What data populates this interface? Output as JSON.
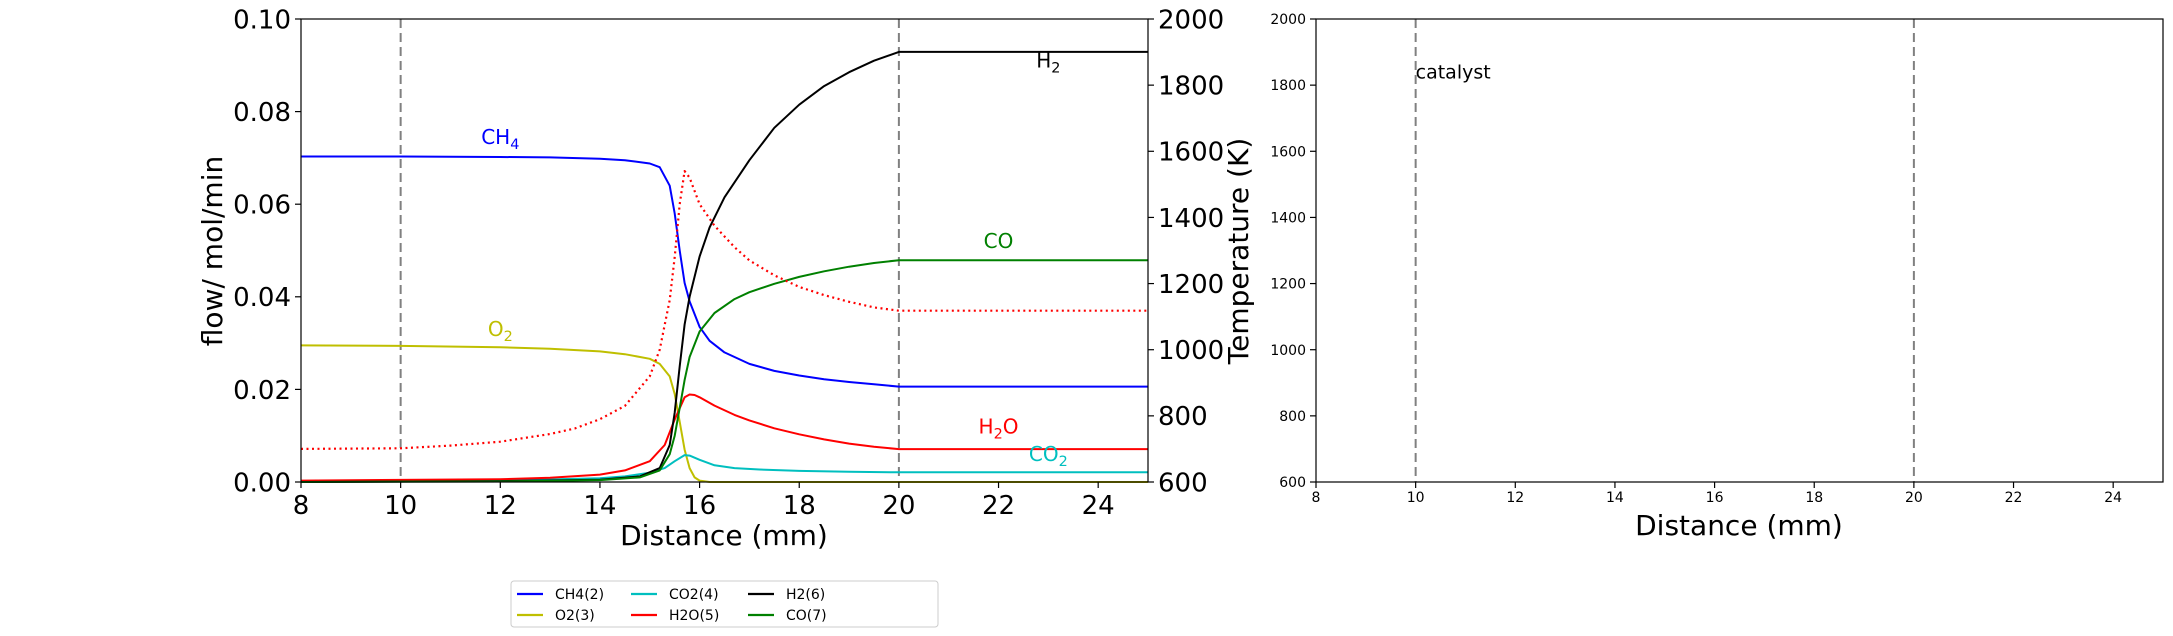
{
  "chart_data": [
    {
      "type": "line",
      "xlabel": "Distance (mm)",
      "ylabel": "flow/ mol/min",
      "y2label": "Temperature (K)",
      "xlim": [
        8,
        25
      ],
      "ylim": [
        0,
        0.1
      ],
      "y2lim": [
        600,
        2000
      ],
      "xticks": [
        "8",
        "10",
        "12",
        "14",
        "16",
        "18",
        "20",
        "22",
        "24"
      ],
      "yticks": [
        "0.00",
        "0.02",
        "0.04",
        "0.06",
        "0.08",
        "0.10"
      ],
      "y2ticks": [
        "600",
        "800",
        "1000",
        "1200",
        "1400",
        "1600",
        "1800",
        "2000"
      ],
      "grid": false,
      "vlines": [
        10,
        20
      ],
      "series": [
        {
          "name": "CH4(2)",
          "color": "#0000ff",
          "style": "solid",
          "axis": "left",
          "x": [
            8,
            10,
            12,
            13,
            14,
            14.5,
            15,
            15.2,
            15.4,
            15.5,
            15.6,
            15.7,
            15.8,
            16,
            16.2,
            16.5,
            17,
            17.5,
            18,
            18.5,
            19,
            19.5,
            20,
            22,
            25
          ],
          "y": [
            0.0703,
            0.0703,
            0.0702,
            0.0701,
            0.0698,
            0.0695,
            0.0688,
            0.068,
            0.064,
            0.058,
            0.05,
            0.043,
            0.039,
            0.0335,
            0.0305,
            0.028,
            0.0255,
            0.024,
            0.023,
            0.0222,
            0.0216,
            0.0211,
            0.0206,
            0.0206,
            0.0206
          ]
        },
        {
          "name": "O2(3)",
          "color": "#bfbf00",
          "style": "solid",
          "axis": "left",
          "x": [
            8,
            10,
            12,
            13,
            14,
            14.5,
            15,
            15.2,
            15.4,
            15.5,
            15.6,
            15.7,
            15.8,
            15.9,
            16,
            16.2,
            25
          ],
          "y": [
            0.0295,
            0.0294,
            0.0291,
            0.0288,
            0.0282,
            0.0276,
            0.0266,
            0.0255,
            0.0228,
            0.019,
            0.013,
            0.007,
            0.003,
            0.001,
            0.0003,
            0.0,
            0.0
          ]
        },
        {
          "name": "CO2(4)",
          "color": "#00bfbf",
          "style": "solid",
          "axis": "left",
          "x": [
            8,
            12,
            14,
            14.5,
            15,
            15.3,
            15.5,
            15.7,
            15.8,
            16,
            16.3,
            16.7,
            17.2,
            18,
            19,
            20,
            25
          ],
          "y": [
            0.0002,
            0.0003,
            0.0008,
            0.0012,
            0.002,
            0.003,
            0.0045,
            0.0058,
            0.0057,
            0.0048,
            0.0036,
            0.003,
            0.0027,
            0.0024,
            0.0022,
            0.0021,
            0.0021
          ]
        },
        {
          "name": "H2O(5)",
          "color": "#ff0000",
          "style": "solid",
          "axis": "left",
          "x": [
            8,
            12,
            13,
            14,
            14.5,
            15,
            15.3,
            15.5,
            15.7,
            15.8,
            15.9,
            16,
            16.3,
            16.7,
            17,
            17.5,
            18,
            18.5,
            19,
            19.5,
            20,
            25
          ],
          "y": [
            0.0003,
            0.0006,
            0.0009,
            0.0016,
            0.0025,
            0.0045,
            0.008,
            0.0135,
            0.0183,
            0.0189,
            0.0188,
            0.0183,
            0.0165,
            0.0145,
            0.0133,
            0.0116,
            0.0103,
            0.0092,
            0.0083,
            0.0076,
            0.0071,
            0.0071
          ]
        },
        {
          "name": "H2(6)",
          "color": "#000000",
          "style": "solid",
          "axis": "left",
          "x": [
            8,
            12,
            14,
            14.8,
            15.2,
            15.4,
            15.5,
            15.6,
            15.7,
            15.8,
            16,
            16.2,
            16.5,
            17,
            17.5,
            18,
            18.5,
            19,
            19.5,
            20,
            25
          ],
          "y": [
            0.0,
            0.0002,
            0.0005,
            0.0012,
            0.003,
            0.008,
            0.015,
            0.025,
            0.034,
            0.04,
            0.0487,
            0.055,
            0.0615,
            0.0695,
            0.0765,
            0.0815,
            0.0855,
            0.0885,
            0.091,
            0.0929,
            0.0929
          ]
        },
        {
          "name": "CO(7)",
          "color": "#008000",
          "style": "solid",
          "axis": "left",
          "x": [
            8,
            12,
            14,
            14.8,
            15.2,
            15.4,
            15.5,
            15.6,
            15.7,
            15.8,
            16,
            16.3,
            16.7,
            17,
            17.5,
            18,
            18.5,
            19,
            19.5,
            20,
            25
          ],
          "y": [
            0.0,
            0.0001,
            0.0004,
            0.001,
            0.0025,
            0.006,
            0.01,
            0.016,
            0.022,
            0.027,
            0.0325,
            0.0365,
            0.0395,
            0.041,
            0.0428,
            0.0443,
            0.0455,
            0.0465,
            0.0473,
            0.0479,
            0.0479
          ]
        },
        {
          "name": "",
          "color": "#ff0000",
          "style": "dotted",
          "axis": "right",
          "x": [
            8,
            10,
            11,
            12,
            13,
            13.5,
            14,
            14.5,
            15,
            15.2,
            15.4,
            15.5,
            15.6,
            15.7,
            15.8,
            15.9,
            16,
            16.3,
            16.7,
            17,
            17.5,
            18,
            18.5,
            19,
            19.5,
            20,
            25
          ],
          "y": [
            700,
            702,
            710,
            722,
            745,
            762,
            790,
            830,
            920,
            1000,
            1150,
            1280,
            1440,
            1540,
            1520,
            1480,
            1440,
            1375,
            1310,
            1270,
            1225,
            1190,
            1165,
            1145,
            1128,
            1118,
            1118
          ]
        }
      ],
      "annotations": [
        {
          "text": "CH",
          "sub": "4",
          "x": 12.0,
          "y": 0.073,
          "color": "#0000ff"
        },
        {
          "text": "O",
          "sub": "2",
          "x": 12.0,
          "y": 0.0315,
          "color": "#bfbf00"
        },
        {
          "text": "H",
          "sub": "2",
          "x": 23.0,
          "y": 0.0895,
          "color": "#000000"
        },
        {
          "text": "CO",
          "sub": "",
          "x": 22.0,
          "y": 0.0505,
          "color": "#008000"
        },
        {
          "text": "H",
          "sub": "2",
          "tail": "O",
          "x": 22.0,
          "y": 0.0105,
          "color": "#ff0000"
        },
        {
          "text": "CO",
          "sub": "2",
          "x": 23.0,
          "y": 0.0045,
          "color": "#00bfbf"
        }
      ],
      "legend": {
        "placement": "below-center",
        "entries": [
          {
            "label": "CH4(2)",
            "color": "#0000ff"
          },
          {
            "label": "O2(3)",
            "color": "#bfbf00"
          },
          {
            "label": "CO2(4)",
            "color": "#00bfbf"
          },
          {
            "label": "H2O(5)",
            "color": "#ff0000"
          },
          {
            "label": "H2(6)",
            "color": "#000000"
          },
          {
            "label": "CO(7)",
            "color": "#008000"
          }
        ]
      }
    },
    {
      "type": "line",
      "xlabel": "Distance (mm)",
      "ylabel": "",
      "xlim": [
        8,
        25
      ],
      "ylim": [
        600,
        2000
      ],
      "xticks": [
        "8",
        "10",
        "12",
        "14",
        "16",
        "18",
        "20",
        "22",
        "24"
      ],
      "yticks": [
        "600",
        "800",
        "1000",
        "1200",
        "1400",
        "1600",
        "1800",
        "2000"
      ],
      "grid": false,
      "vlines": [
        10,
        20
      ],
      "series": [],
      "annotations": [
        {
          "text": "catalyst",
          "x": 10.0,
          "y": 1820,
          "color": "#000000"
        }
      ]
    }
  ]
}
